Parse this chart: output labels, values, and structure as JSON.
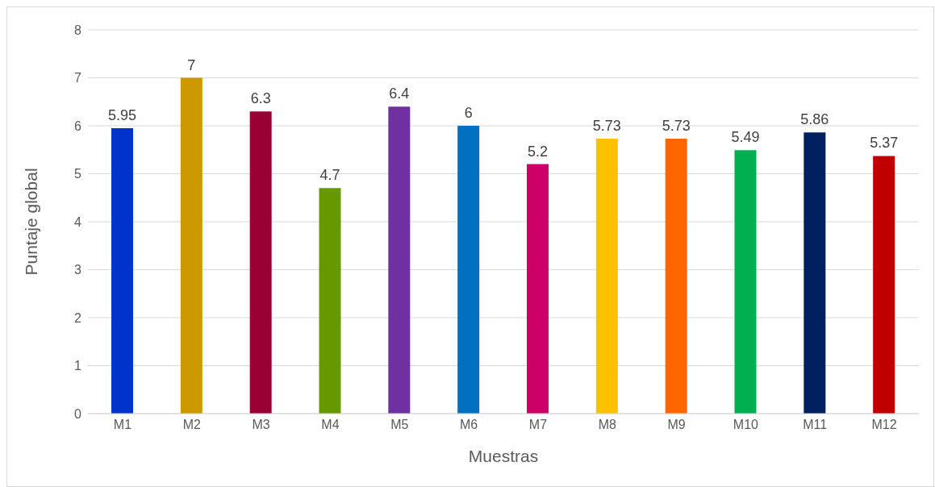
{
  "chart_data": {
    "type": "bar",
    "xlabel": "Muestras",
    "ylabel": "Puntaje global",
    "categories": [
      "M1",
      "M2",
      "M3",
      "M4",
      "M5",
      "M6",
      "M7",
      "M8",
      "M9",
      "M10",
      "M11",
      "M12"
    ],
    "values": [
      5.95,
      7,
      6.3,
      4.7,
      6.4,
      6,
      5.2,
      5.73,
      5.73,
      5.49,
      5.86,
      5.37
    ],
    "colors": [
      "#0033cc",
      "#cc9900",
      "#990033",
      "#669900",
      "#7030a0",
      "#0070c0",
      "#cc0066",
      "#ffc000",
      "#ff6600",
      "#00b050",
      "#002060",
      "#c00000"
    ],
    "ylim": [
      0,
      8
    ],
    "yticks": [
      0,
      1,
      2,
      3,
      4,
      5,
      6,
      7,
      8
    ],
    "grid": "y",
    "data_labels": true,
    "legend": false
  }
}
